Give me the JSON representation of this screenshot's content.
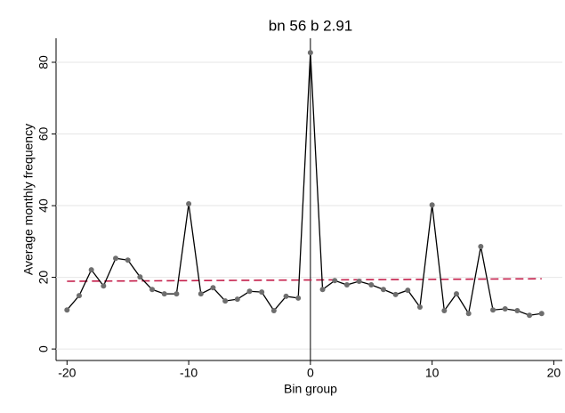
{
  "chart_data": {
    "type": "line",
    "title": "bn 56 b 2.91",
    "x_label": "Bin group",
    "y_label": "Average monthly frequency",
    "x": [
      -20,
      -19,
      -18,
      -17,
      -16,
      -15,
      -14,
      -13,
      -12,
      -11,
      -10,
      -9,
      -8,
      -7,
      -6,
      -5,
      -4,
      -3,
      -2,
      -1,
      0,
      1,
      2,
      3,
      4,
      5,
      6,
      7,
      8,
      9,
      10,
      11,
      12,
      13,
      14,
      15,
      16,
      17,
      18,
      19
    ],
    "series": [
      {
        "color": "#000000",
        "marker_color": "#6e6e6e",
        "values": [
          10.9,
          14.9,
          22.1,
          17.6,
          25.3,
          24.8,
          20.1,
          16.6,
          15.4,
          15.4,
          40.5,
          15.4,
          17.1,
          13.4,
          13.9,
          16.1,
          15.9,
          10.7,
          14.7,
          14.2,
          82.7,
          16.6,
          19.1,
          17.9,
          18.9,
          17.9,
          16.6,
          15.2,
          16.4,
          11.7,
          40.2,
          10.7,
          15.4,
          9.9,
          28.6,
          10.9,
          11.2,
          10.7,
          9.4,
          9.9
        ]
      }
    ],
    "fit_line": {
      "color": "#c41e4a",
      "x": [
        -20,
        19
      ],
      "values": [
        18.9,
        19.6
      ]
    },
    "vline_x": 0,
    "xlim": [
      -20.9,
      20.7
    ],
    "ylim": [
      -3.2,
      86.7
    ],
    "xticks": [
      -20,
      -10,
      0,
      10,
      20
    ],
    "yticks": [
      0,
      20,
      40,
      60,
      80
    ],
    "grid": true
  }
}
